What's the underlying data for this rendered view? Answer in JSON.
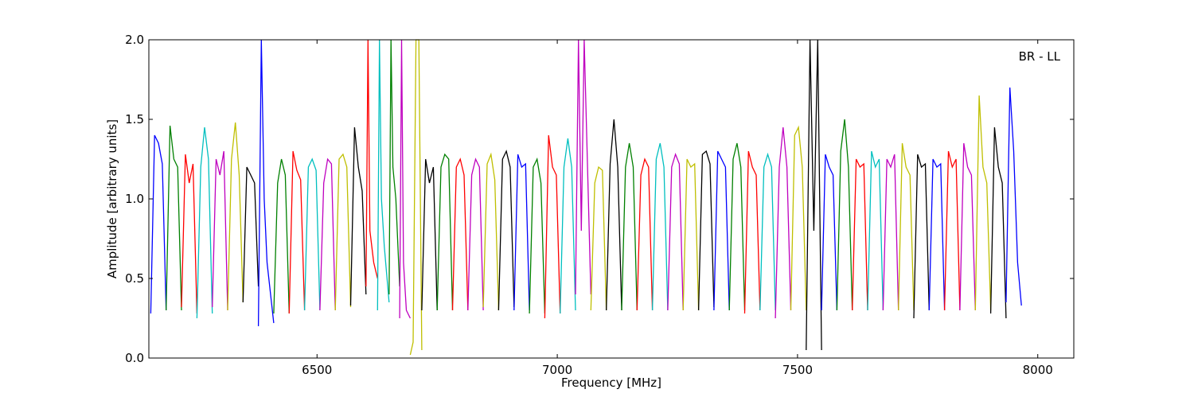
{
  "chart_data": {
    "type": "line",
    "title": "",
    "annotation": "BR - LL",
    "xlabel": "Frequency [MHz]",
    "ylabel": "Amplitude [arbitrary units]",
    "xlim": [
      6150,
      8075
    ],
    "ylim": [
      0.0,
      2.0
    ],
    "xticks": [
      6500,
      7000,
      7500,
      8000
    ],
    "xtick_labels": [
      "6500",
      "7000",
      "7500",
      "8000"
    ],
    "yticks": [
      0.0,
      0.5,
      1.0,
      1.5,
      2.0
    ],
    "ytick_labels": [
      "0.0",
      "0.5",
      "1.0",
      "1.5",
      "2.0"
    ],
    "grid": false,
    "legend": "none",
    "channel_width_mhz": 32,
    "channel_start_mhz": 6154,
    "channel_colors": [
      "#0000ff",
      "#008000",
      "#ff0000",
      "#00bfbf",
      "#bf00bf",
      "#bfbf00",
      "#000000"
    ],
    "background_series_color": "#bfbfbf",
    "series": [
      {
        "color": "#0000ff",
        "x": [
          6154,
          6162,
          6170,
          6178,
          6186
        ],
        "y": [
          0.28,
          1.4,
          1.35,
          1.22,
          0.3
        ]
      },
      {
        "color": "#008000",
        "x": [
          6186,
          6194,
          6202,
          6210,
          6218
        ],
        "y": [
          0.3,
          1.46,
          1.25,
          1.2,
          0.3
        ]
      },
      {
        "color": "#ff0000",
        "x": [
          6218,
          6226,
          6234,
          6242,
          6250
        ],
        "y": [
          0.32,
          1.28,
          1.1,
          1.22,
          0.28
        ]
      },
      {
        "color": "#00bfbf",
        "x": [
          6250,
          6258,
          6266,
          6274,
          6282
        ],
        "y": [
          0.25,
          1.2,
          1.45,
          1.25,
          0.28
        ]
      },
      {
        "color": "#bf00bf",
        "x": [
          6282,
          6290,
          6298,
          6306,
          6314
        ],
        "y": [
          0.32,
          1.25,
          1.15,
          1.3,
          0.3
        ]
      },
      {
        "color": "#bfbf00",
        "x": [
          6314,
          6322,
          6330,
          6338,
          6346
        ],
        "y": [
          0.3,
          1.25,
          1.48,
          1.15,
          0.35
        ]
      },
      {
        "color": "#000000",
        "x": [
          6346,
          6354,
          6362,
          6370,
          6378
        ],
        "y": [
          0.35,
          1.2,
          1.15,
          1.1,
          0.45
        ]
      },
      {
        "color": "#0000ff",
        "x": [
          6378,
          6384,
          6390,
          6396,
          6410
        ],
        "y": [
          0.2,
          2.0,
          1.0,
          0.6,
          0.22
        ]
      },
      {
        "color": "#008000",
        "x": [
          6410,
          6418,
          6426,
          6434,
          6442
        ],
        "y": [
          0.28,
          1.1,
          1.25,
          1.15,
          0.28
        ]
      },
      {
        "color": "#ff0000",
        "x": [
          6442,
          6450,
          6458,
          6466,
          6474
        ],
        "y": [
          0.28,
          1.3,
          1.18,
          1.12,
          0.3
        ]
      },
      {
        "color": "#00bfbf",
        "x": [
          6474,
          6482,
          6490,
          6498,
          6506
        ],
        "y": [
          0.3,
          1.2,
          1.25,
          1.18,
          0.3
        ]
      },
      {
        "color": "#bf00bf",
        "x": [
          6506,
          6514,
          6522,
          6530,
          6538
        ],
        "y": [
          0.3,
          1.1,
          1.25,
          1.22,
          0.3
        ]
      },
      {
        "color": "#bfbf00",
        "x": [
          6538,
          6546,
          6554,
          6562,
          6570
        ],
        "y": [
          0.3,
          1.25,
          1.28,
          1.2,
          0.32
        ]
      },
      {
        "color": "#000000",
        "x": [
          6570,
          6578,
          6586,
          6594,
          6602
        ],
        "y": [
          0.33,
          1.45,
          1.2,
          1.05,
          0.4
        ]
      },
      {
        "color": "#ff0000",
        "x": [
          6602,
          6606,
          6610,
          6618,
          6626
        ],
        "y": [
          0.45,
          2.0,
          0.8,
          0.6,
          0.5
        ]
      },
      {
        "color": "#00bfbf",
        "x": [
          6626,
          6630,
          6634,
          6640,
          6650
        ],
        "y": [
          0.3,
          2.0,
          1.0,
          0.7,
          0.35
        ]
      },
      {
        "color": "#008000",
        "x": [
          6650,
          6654,
          6658,
          6664,
          6672
        ],
        "y": [
          0.4,
          2.0,
          1.2,
          1.0,
          0.45
        ]
      },
      {
        "color": "#bf00bf",
        "x": [
          6672,
          6676,
          6680,
          6686,
          6694
        ],
        "y": [
          0.25,
          2.0,
          0.6,
          0.3,
          0.25
        ]
      },
      {
        "color": "#bfbf00",
        "x": [
          6694,
          6700,
          6706,
          6712,
          6718
        ],
        "y": [
          0.02,
          0.1,
          2.0,
          2.0,
          0.05
        ]
      },
      {
        "color": "#000000",
        "x": [
          6718,
          6726,
          6734,
          6742,
          6750
        ],
        "y": [
          0.3,
          1.25,
          1.1,
          1.2,
          0.3
        ]
      },
      {
        "color": "#008000",
        "x": [
          6750,
          6758,
          6766,
          6774,
          6782
        ],
        "y": [
          0.3,
          1.2,
          1.28,
          1.25,
          0.3
        ]
      },
      {
        "color": "#ff0000",
        "x": [
          6782,
          6790,
          6798,
          6806,
          6814
        ],
        "y": [
          0.3,
          1.2,
          1.25,
          1.15,
          0.3
        ]
      },
      {
        "color": "#bf00bf",
        "x": [
          6814,
          6822,
          6830,
          6838,
          6846
        ],
        "y": [
          0.3,
          1.15,
          1.25,
          1.2,
          0.3
        ]
      },
      {
        "color": "#bfbf00",
        "x": [
          6846,
          6854,
          6862,
          6870,
          6878
        ],
        "y": [
          0.32,
          1.22,
          1.28,
          1.12,
          0.3
        ]
      },
      {
        "color": "#000000",
        "x": [
          6878,
          6886,
          6894,
          6902,
          6910
        ],
        "y": [
          0.3,
          1.25,
          1.3,
          1.2,
          0.32
        ]
      },
      {
        "color": "#0000ff",
        "x": [
          6910,
          6918,
          6926,
          6934,
          6942
        ],
        "y": [
          0.3,
          1.28,
          1.2,
          1.22,
          0.3
        ]
      },
      {
        "color": "#008000",
        "x": [
          6942,
          6950,
          6958,
          6966,
          6974
        ],
        "y": [
          0.28,
          1.2,
          1.25,
          1.1,
          0.28
        ]
      },
      {
        "color": "#ff0000",
        "x": [
          6974,
          6982,
          6990,
          6998,
          7006
        ],
        "y": [
          0.25,
          1.4,
          1.2,
          1.15,
          0.28
        ]
      },
      {
        "color": "#00bfbf",
        "x": [
          7006,
          7014,
          7022,
          7030,
          7038
        ],
        "y": [
          0.28,
          1.2,
          1.38,
          1.2,
          0.3
        ]
      },
      {
        "color": "#bf00bf",
        "x": [
          7038,
          7044,
          7050,
          7056,
          7070
        ],
        "y": [
          0.4,
          2.0,
          0.8,
          2.0,
          0.4
        ]
      },
      {
        "color": "#bfbf00",
        "x": [
          7070,
          7078,
          7086,
          7094,
          7102
        ],
        "y": [
          0.3,
          1.1,
          1.2,
          1.18,
          0.3
        ]
      },
      {
        "color": "#000000",
        "x": [
          7102,
          7110,
          7118,
          7126,
          7134
        ],
        "y": [
          0.3,
          1.22,
          1.5,
          1.2,
          0.3
        ]
      },
      {
        "color": "#008000",
        "x": [
          7134,
          7142,
          7150,
          7158,
          7166
        ],
        "y": [
          0.3,
          1.2,
          1.35,
          1.2,
          0.3
        ]
      },
      {
        "color": "#ff0000",
        "x": [
          7166,
          7174,
          7182,
          7190,
          7198
        ],
        "y": [
          0.3,
          1.15,
          1.25,
          1.2,
          0.3
        ]
      },
      {
        "color": "#00bfbf",
        "x": [
          7198,
          7206,
          7214,
          7222,
          7230
        ],
        "y": [
          0.3,
          1.25,
          1.35,
          1.2,
          0.3
        ]
      },
      {
        "color": "#bf00bf",
        "x": [
          7230,
          7238,
          7246,
          7254,
          7262
        ],
        "y": [
          0.3,
          1.2,
          1.28,
          1.22,
          0.3
        ]
      },
      {
        "color": "#bfbf00",
        "x": [
          7262,
          7270,
          7278,
          7286,
          7294
        ],
        "y": [
          0.3,
          1.25,
          1.2,
          1.22,
          0.3
        ]
      },
      {
        "color": "#000000",
        "x": [
          7294,
          7302,
          7310,
          7318,
          7326
        ],
        "y": [
          0.3,
          1.28,
          1.3,
          1.22,
          0.32
        ]
      },
      {
        "color": "#0000ff",
        "x": [
          7326,
          7334,
          7342,
          7350,
          7358
        ],
        "y": [
          0.3,
          1.3,
          1.25,
          1.2,
          0.3
        ]
      },
      {
        "color": "#008000",
        "x": [
          7358,
          7366,
          7374,
          7382,
          7390
        ],
        "y": [
          0.3,
          1.25,
          1.35,
          1.2,
          0.3
        ]
      },
      {
        "color": "#ff0000",
        "x": [
          7390,
          7398,
          7406,
          7414,
          7422
        ],
        "y": [
          0.28,
          1.3,
          1.2,
          1.15,
          0.3
        ]
      },
      {
        "color": "#00bfbf",
        "x": [
          7422,
          7430,
          7438,
          7446,
          7454
        ],
        "y": [
          0.3,
          1.2,
          1.28,
          1.2,
          0.3
        ]
      },
      {
        "color": "#bf00bf",
        "x": [
          7454,
          7462,
          7470,
          7478,
          7486
        ],
        "y": [
          0.25,
          1.2,
          1.45,
          1.2,
          0.3
        ]
      },
      {
        "color": "#bfbf00",
        "x": [
          7486,
          7494,
          7502,
          7510,
          7518
        ],
        "y": [
          0.3,
          1.4,
          1.45,
          1.2,
          0.3
        ]
      },
      {
        "color": "#000000",
        "x": [
          7518,
          7526,
          7534,
          7542,
          7550
        ],
        "y": [
          0.05,
          2.0,
          0.8,
          2.0,
          0.05
        ]
      },
      {
        "color": "#0000ff",
        "x": [
          7550,
          7558,
          7566,
          7574,
          7582
        ],
        "y": [
          0.3,
          1.28,
          1.2,
          1.15,
          0.3
        ]
      },
      {
        "color": "#008000",
        "x": [
          7582,
          7590,
          7598,
          7606,
          7614
        ],
        "y": [
          0.3,
          1.3,
          1.5,
          1.2,
          0.3
        ]
      },
      {
        "color": "#ff0000",
        "x": [
          7614,
          7622,
          7630,
          7638,
          7646
        ],
        "y": [
          0.3,
          1.25,
          1.2,
          1.22,
          0.3
        ]
      },
      {
        "color": "#00bfbf",
        "x": [
          7646,
          7654,
          7662,
          7670,
          7678
        ],
        "y": [
          0.3,
          1.3,
          1.2,
          1.25,
          0.3
        ]
      },
      {
        "color": "#bf00bf",
        "x": [
          7678,
          7686,
          7694,
          7702,
          7710
        ],
        "y": [
          0.3,
          1.25,
          1.2,
          1.28,
          0.3
        ]
      },
      {
        "color": "#bfbf00",
        "x": [
          7710,
          7718,
          7726,
          7734,
          7742
        ],
        "y": [
          0.3,
          1.35,
          1.2,
          1.15,
          0.3
        ]
      },
      {
        "color": "#000000",
        "x": [
          7742,
          7750,
          7758,
          7766,
          7774
        ],
        "y": [
          0.25,
          1.28,
          1.2,
          1.22,
          0.3
        ]
      },
      {
        "color": "#0000ff",
        "x": [
          7774,
          7782,
          7790,
          7798,
          7806
        ],
        "y": [
          0.3,
          1.25,
          1.2,
          1.22,
          0.3
        ]
      },
      {
        "color": "#ff0000",
        "x": [
          7806,
          7814,
          7822,
          7830,
          7838
        ],
        "y": [
          0.3,
          1.3,
          1.2,
          1.25,
          0.3
        ]
      },
      {
        "color": "#bf00bf",
        "x": [
          7838,
          7846,
          7854,
          7862,
          7870
        ],
        "y": [
          0.3,
          1.35,
          1.2,
          1.15,
          0.3
        ]
      },
      {
        "color": "#bfbf00",
        "x": [
          7870,
          7878,
          7886,
          7894,
          7902
        ],
        "y": [
          0.3,
          1.65,
          1.2,
          1.1,
          0.3
        ]
      },
      {
        "color": "#000000",
        "x": [
          7902,
          7910,
          7918,
          7926,
          7934
        ],
        "y": [
          0.28,
          1.45,
          1.2,
          1.1,
          0.25
        ]
      },
      {
        "color": "#0000ff",
        "x": [
          7934,
          7942,
          7950,
          7958,
          7966
        ],
        "y": [
          0.35,
          1.7,
          1.3,
          0.6,
          0.33
        ]
      }
    ]
  }
}
